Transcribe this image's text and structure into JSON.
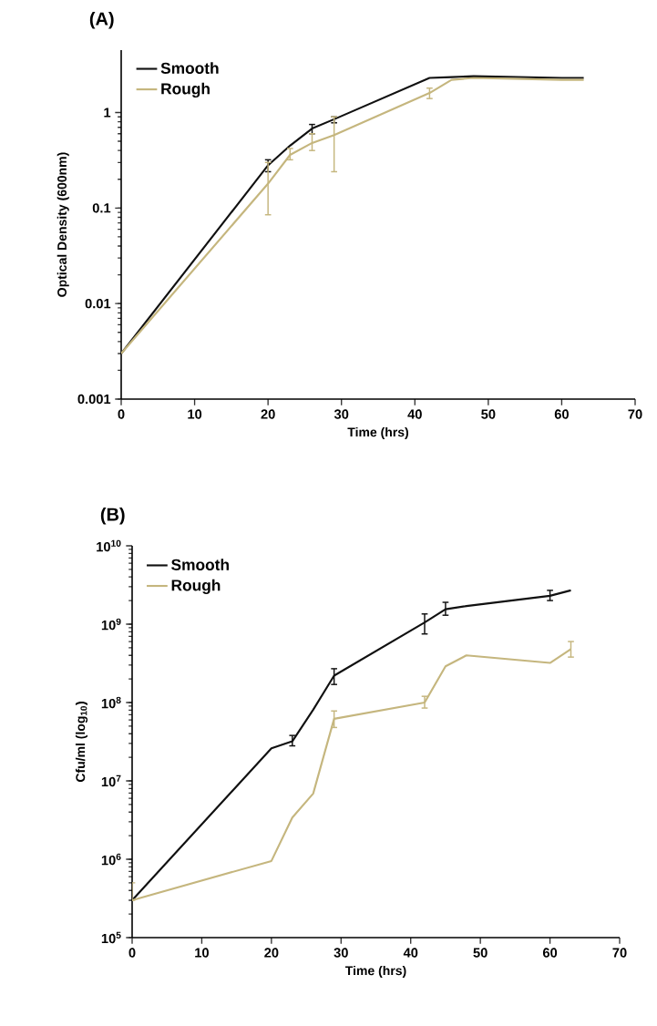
{
  "chart_data": [
    {
      "type": "line",
      "title": "(A)",
      "xlabel": "Time (hrs)",
      "ylabel": "Optical Density (600nm)",
      "log": "y",
      "legend": "top left",
      "xlim": [
        0,
        70
      ],
      "xticks": [
        0,
        10,
        20,
        30,
        40,
        50,
        60,
        70
      ],
      "ylim": [
        0.001,
        4.5
      ],
      "yticks": [
        0.001,
        0.01,
        0.1,
        1
      ],
      "x": [
        0,
        20,
        23,
        26,
        29,
        42,
        45,
        48,
        60,
        63
      ],
      "series": [
        {
          "name": "Smooth",
          "color": "#111111",
          "values": [
            0.003,
            0.28,
            0.45,
            0.68,
            0.85,
            2.3,
            2.35,
            2.4,
            2.3,
            2.3
          ],
          "errors": [
            null,
            [
              0.24,
              0.32
            ],
            null,
            [
              0.6,
              0.75
            ],
            [
              0.78,
              0.9
            ],
            null,
            null,
            null,
            null,
            null
          ]
        },
        {
          "name": "Rough",
          "color": "#c5b67e",
          "values": [
            0.003,
            0.18,
            0.36,
            0.48,
            0.58,
            1.6,
            2.2,
            2.3,
            2.2,
            2.2
          ],
          "errors": [
            null,
            [
              0.085,
              0.3
            ],
            [
              0.32,
              0.42
            ],
            [
              0.4,
              0.6
            ],
            [
              0.24,
              0.9
            ],
            [
              1.4,
              1.8
            ],
            null,
            null,
            null,
            null
          ]
        }
      ]
    },
    {
      "type": "line",
      "title": "(B)",
      "xlabel": "Time (hrs)",
      "ylabel": "Cfu/ml (log$_{10}$)",
      "log": "y",
      "legend": "top left",
      "xlim": [
        0,
        70
      ],
      "xticks": [
        0,
        10,
        20,
        30,
        40,
        50,
        60,
        70
      ],
      "ylim": [
        100000,
        10000000000
      ],
      "yticks": [
        {
          "value": 100000,
          "label": "10$^{5}$"
        },
        {
          "value": 1000000,
          "label": "10$^{6}$"
        },
        {
          "value": 10000000,
          "label": "10$^{7}$"
        },
        {
          "value": 100000000,
          "label": "10$^{8}$"
        },
        {
          "value": 1000000000,
          "label": "10$^{9}$"
        },
        {
          "value": 10000000000,
          "label": "10$^{10}$"
        }
      ],
      "x": [
        0,
        20,
        23,
        26,
        29,
        42,
        45,
        48,
        60,
        63
      ],
      "series": [
        {
          "name": "Smooth",
          "color": "#111111",
          "values": [
            300000,
            26000000,
            32000000,
            81000000,
            220000000,
            1050000000,
            1550000000,
            1700000000,
            2300000000,
            2700000000
          ],
          "errors": [
            null,
            null,
            [
              28000000,
              38000000
            ],
            null,
            [
              170000000,
              270000000
            ],
            [
              750000000,
              1350000000
            ],
            [
              1300000000,
              1900000000
            ],
            null,
            [
              2000000000,
              2700000000
            ],
            null
          ]
        },
        {
          "name": "Rough",
          "color": "#c5b67e",
          "values": [
            300000,
            950000,
            3400000,
            6900000,
            62000000,
            100000000,
            290000000,
            400000000,
            320000000,
            480000000
          ],
          "errors": [
            [
              300000,
              500000
            ],
            null,
            null,
            null,
            [
              48000000,
              78000000
            ],
            [
              85000000,
              120000000
            ],
            null,
            null,
            null,
            [
              380000000,
              600000000
            ]
          ]
        }
      ]
    }
  ]
}
